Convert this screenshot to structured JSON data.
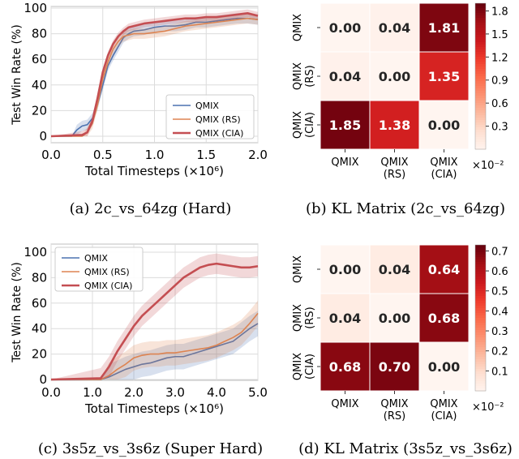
{
  "chart_data": [
    {
      "id": "a",
      "type": "line",
      "caption": "(a) 2c_vs_64zg (Hard)",
      "xlabel": "Total Timesteps (×10⁶)",
      "ylabel": "Test Win Rate (%)",
      "xlim": [
        0,
        2.0
      ],
      "ylim": [
        0,
        100
      ],
      "xticks": [
        "0.0",
        "0.5",
        "1.0",
        "1.5",
        "2.0"
      ],
      "yticks": [
        "0",
        "20",
        "40",
        "60",
        "80",
        "100"
      ],
      "grid": true,
      "legend": "lower right",
      "series": [
        {
          "name": "QMIX",
          "color": "#4c72b0",
          "x": [
            0,
            0.2,
            0.25,
            0.3,
            0.35,
            0.4,
            0.45,
            0.5,
            0.55,
            0.6,
            0.65,
            0.7,
            0.75,
            0.8,
            0.9,
            1.0,
            1.1,
            1.2,
            1.3,
            1.4,
            1.5,
            1.6,
            1.7,
            1.8,
            1.9,
            2.0
          ],
          "y": [
            0,
            0,
            5,
            8,
            9,
            14,
            25,
            40,
            55,
            63,
            70,
            77,
            80,
            82,
            83,
            85,
            86,
            86,
            87,
            89,
            89,
            90,
            91,
            92,
            92,
            91
          ],
          "band": 4
        },
        {
          "name": "QMIX (RS)",
          "color": "#dd8452",
          "x": [
            0,
            0.3,
            0.35,
            0.4,
            0.45,
            0.5,
            0.55,
            0.6,
            0.65,
            0.7,
            0.75,
            0.8,
            0.9,
            1.0,
            1.1,
            1.2,
            1.3,
            1.4,
            1.5,
            1.6,
            1.7,
            1.8,
            1.9,
            2.0
          ],
          "y": [
            0,
            0,
            3,
            10,
            25,
            45,
            58,
            68,
            74,
            78,
            79,
            80,
            80,
            81,
            82,
            84,
            86,
            87,
            88,
            89,
            90,
            91,
            92,
            91
          ],
          "band": 4
        },
        {
          "name": "QMIX (CIA)",
          "color": "#c44e52",
          "x": [
            0,
            0.3,
            0.35,
            0.4,
            0.45,
            0.5,
            0.55,
            0.6,
            0.65,
            0.7,
            0.75,
            0.8,
            0.9,
            1.0,
            1.1,
            1.2,
            1.3,
            1.4,
            1.5,
            1.6,
            1.7,
            1.8,
            1.9,
            2.0
          ],
          "y": [
            0,
            1,
            3,
            12,
            30,
            50,
            63,
            72,
            78,
            82,
            85,
            86,
            88,
            89,
            90,
            91,
            92,
            92,
            93,
            93,
            94,
            95,
            96,
            94
          ],
          "band": 3
        }
      ]
    },
    {
      "id": "b",
      "type": "heatmap",
      "caption": "(b) KL Matrix (2c_vs_64zg)",
      "rows": [
        "QMIX",
        "QMIX (RS)",
        "QMIX (CIA)"
      ],
      "cols": [
        "QMIX",
        "QMIX (RS)",
        "QMIX (CIA)"
      ],
      "values": [
        [
          0.0,
          0.04,
          1.81
        ],
        [
          0.04,
          0.0,
          1.35
        ],
        [
          1.85,
          1.38,
          0.0
        ]
      ],
      "cell_labels": [
        [
          "0.00",
          "0.04",
          "1.81"
        ],
        [
          "0.04",
          "0.00",
          "1.35"
        ],
        [
          "1.85",
          "1.38",
          "0.00"
        ]
      ],
      "colorbar_ticks": [
        "1.8",
        "1.5",
        "1.2",
        "0.9",
        "0.6",
        "0.3"
      ],
      "colorbar_ticks_values": [
        1.8,
        1.5,
        1.2,
        0.9,
        0.6,
        0.3
      ],
      "colorbar_range": [
        0.0,
        1.9
      ],
      "scale_label": "×10⁻²",
      "colormap": "Reds"
    },
    {
      "id": "c",
      "type": "line",
      "caption": "(c) 3s5z_vs_3s6z (Super Hard)",
      "xlabel": "Total Timesteps (×10⁶)",
      "ylabel": "Test Win Rate (%)",
      "xlim": [
        0,
        5.0
      ],
      "ylim": [
        0,
        100
      ],
      "xticks": [
        "0.0",
        "1.0",
        "2.0",
        "3.0",
        "4.0",
        "5.0"
      ],
      "yticks": [
        "0",
        "20",
        "40",
        "60",
        "80",
        "100"
      ],
      "grid": true,
      "legend": "upper left",
      "series": [
        {
          "name": "QMIX",
          "color": "#4c72b0",
          "x": [
            0,
            1.2,
            1.4,
            1.6,
            1.8,
            2.0,
            2.2,
            2.4,
            2.6,
            2.8,
            3.0,
            3.2,
            3.4,
            3.6,
            3.8,
            4.0,
            4.2,
            4.4,
            4.6,
            4.8,
            5.0
          ],
          "y": [
            0,
            0,
            2,
            5,
            8,
            10,
            12,
            13,
            15,
            17,
            18,
            18,
            20,
            22,
            24,
            26,
            28,
            30,
            35,
            40,
            44
          ],
          "band": 10
        },
        {
          "name": "QMIX (RS)",
          "color": "#dd8452",
          "x": [
            0,
            1.2,
            1.4,
            1.6,
            1.8,
            2.0,
            2.2,
            2.4,
            2.6,
            2.8,
            3.0,
            3.2,
            3.4,
            3.6,
            3.8,
            4.0,
            4.2,
            4.4,
            4.6,
            4.8,
            5.0
          ],
          "y": [
            0,
            0,
            3,
            8,
            12,
            17,
            19,
            20,
            20,
            21,
            21,
            22,
            23,
            24,
            25,
            27,
            30,
            33,
            37,
            44,
            52
          ],
          "band": 10
        },
        {
          "name": "QMIX (CIA)",
          "color": "#c44e52",
          "x": [
            0,
            1.2,
            1.4,
            1.6,
            1.8,
            2.0,
            2.2,
            2.4,
            2.6,
            2.8,
            3.0,
            3.2,
            3.4,
            3.6,
            3.8,
            4.0,
            4.2,
            4.4,
            4.6,
            4.8,
            5.0
          ],
          "y": [
            0,
            1,
            10,
            22,
            32,
            42,
            50,
            56,
            62,
            68,
            74,
            80,
            84,
            88,
            90,
            91,
            90,
            89,
            88,
            88,
            89
          ],
          "band": 8
        }
      ]
    },
    {
      "id": "d",
      "type": "heatmap",
      "caption": "(d) KL Matrix (3s5z_vs_3s6z)",
      "rows": [
        "QMIX",
        "QMIX (RS)",
        "QMIX (CIA)"
      ],
      "cols": [
        "QMIX",
        "QMIX (RS)",
        "QMIX (CIA)"
      ],
      "values": [
        [
          0.0,
          0.04,
          0.64
        ],
        [
          0.04,
          0.0,
          0.68
        ],
        [
          0.68,
          0.7,
          0.0
        ]
      ],
      "cell_labels": [
        [
          "0.00",
          "0.04",
          "0.64"
        ],
        [
          "0.04",
          "0.00",
          "0.68"
        ],
        [
          "0.68",
          "0.70",
          "0.00"
        ]
      ],
      "colorbar_ticks": [
        "0.7",
        "0.6",
        "0.5",
        "0.4",
        "0.3",
        "0.2",
        "0.1"
      ],
      "colorbar_ticks_values": [
        0.7,
        0.6,
        0.5,
        0.4,
        0.3,
        0.2,
        0.1
      ],
      "colorbar_range": [
        0.0,
        0.73
      ],
      "scale_label": "×10⁻²",
      "colormap": "Reds"
    }
  ]
}
